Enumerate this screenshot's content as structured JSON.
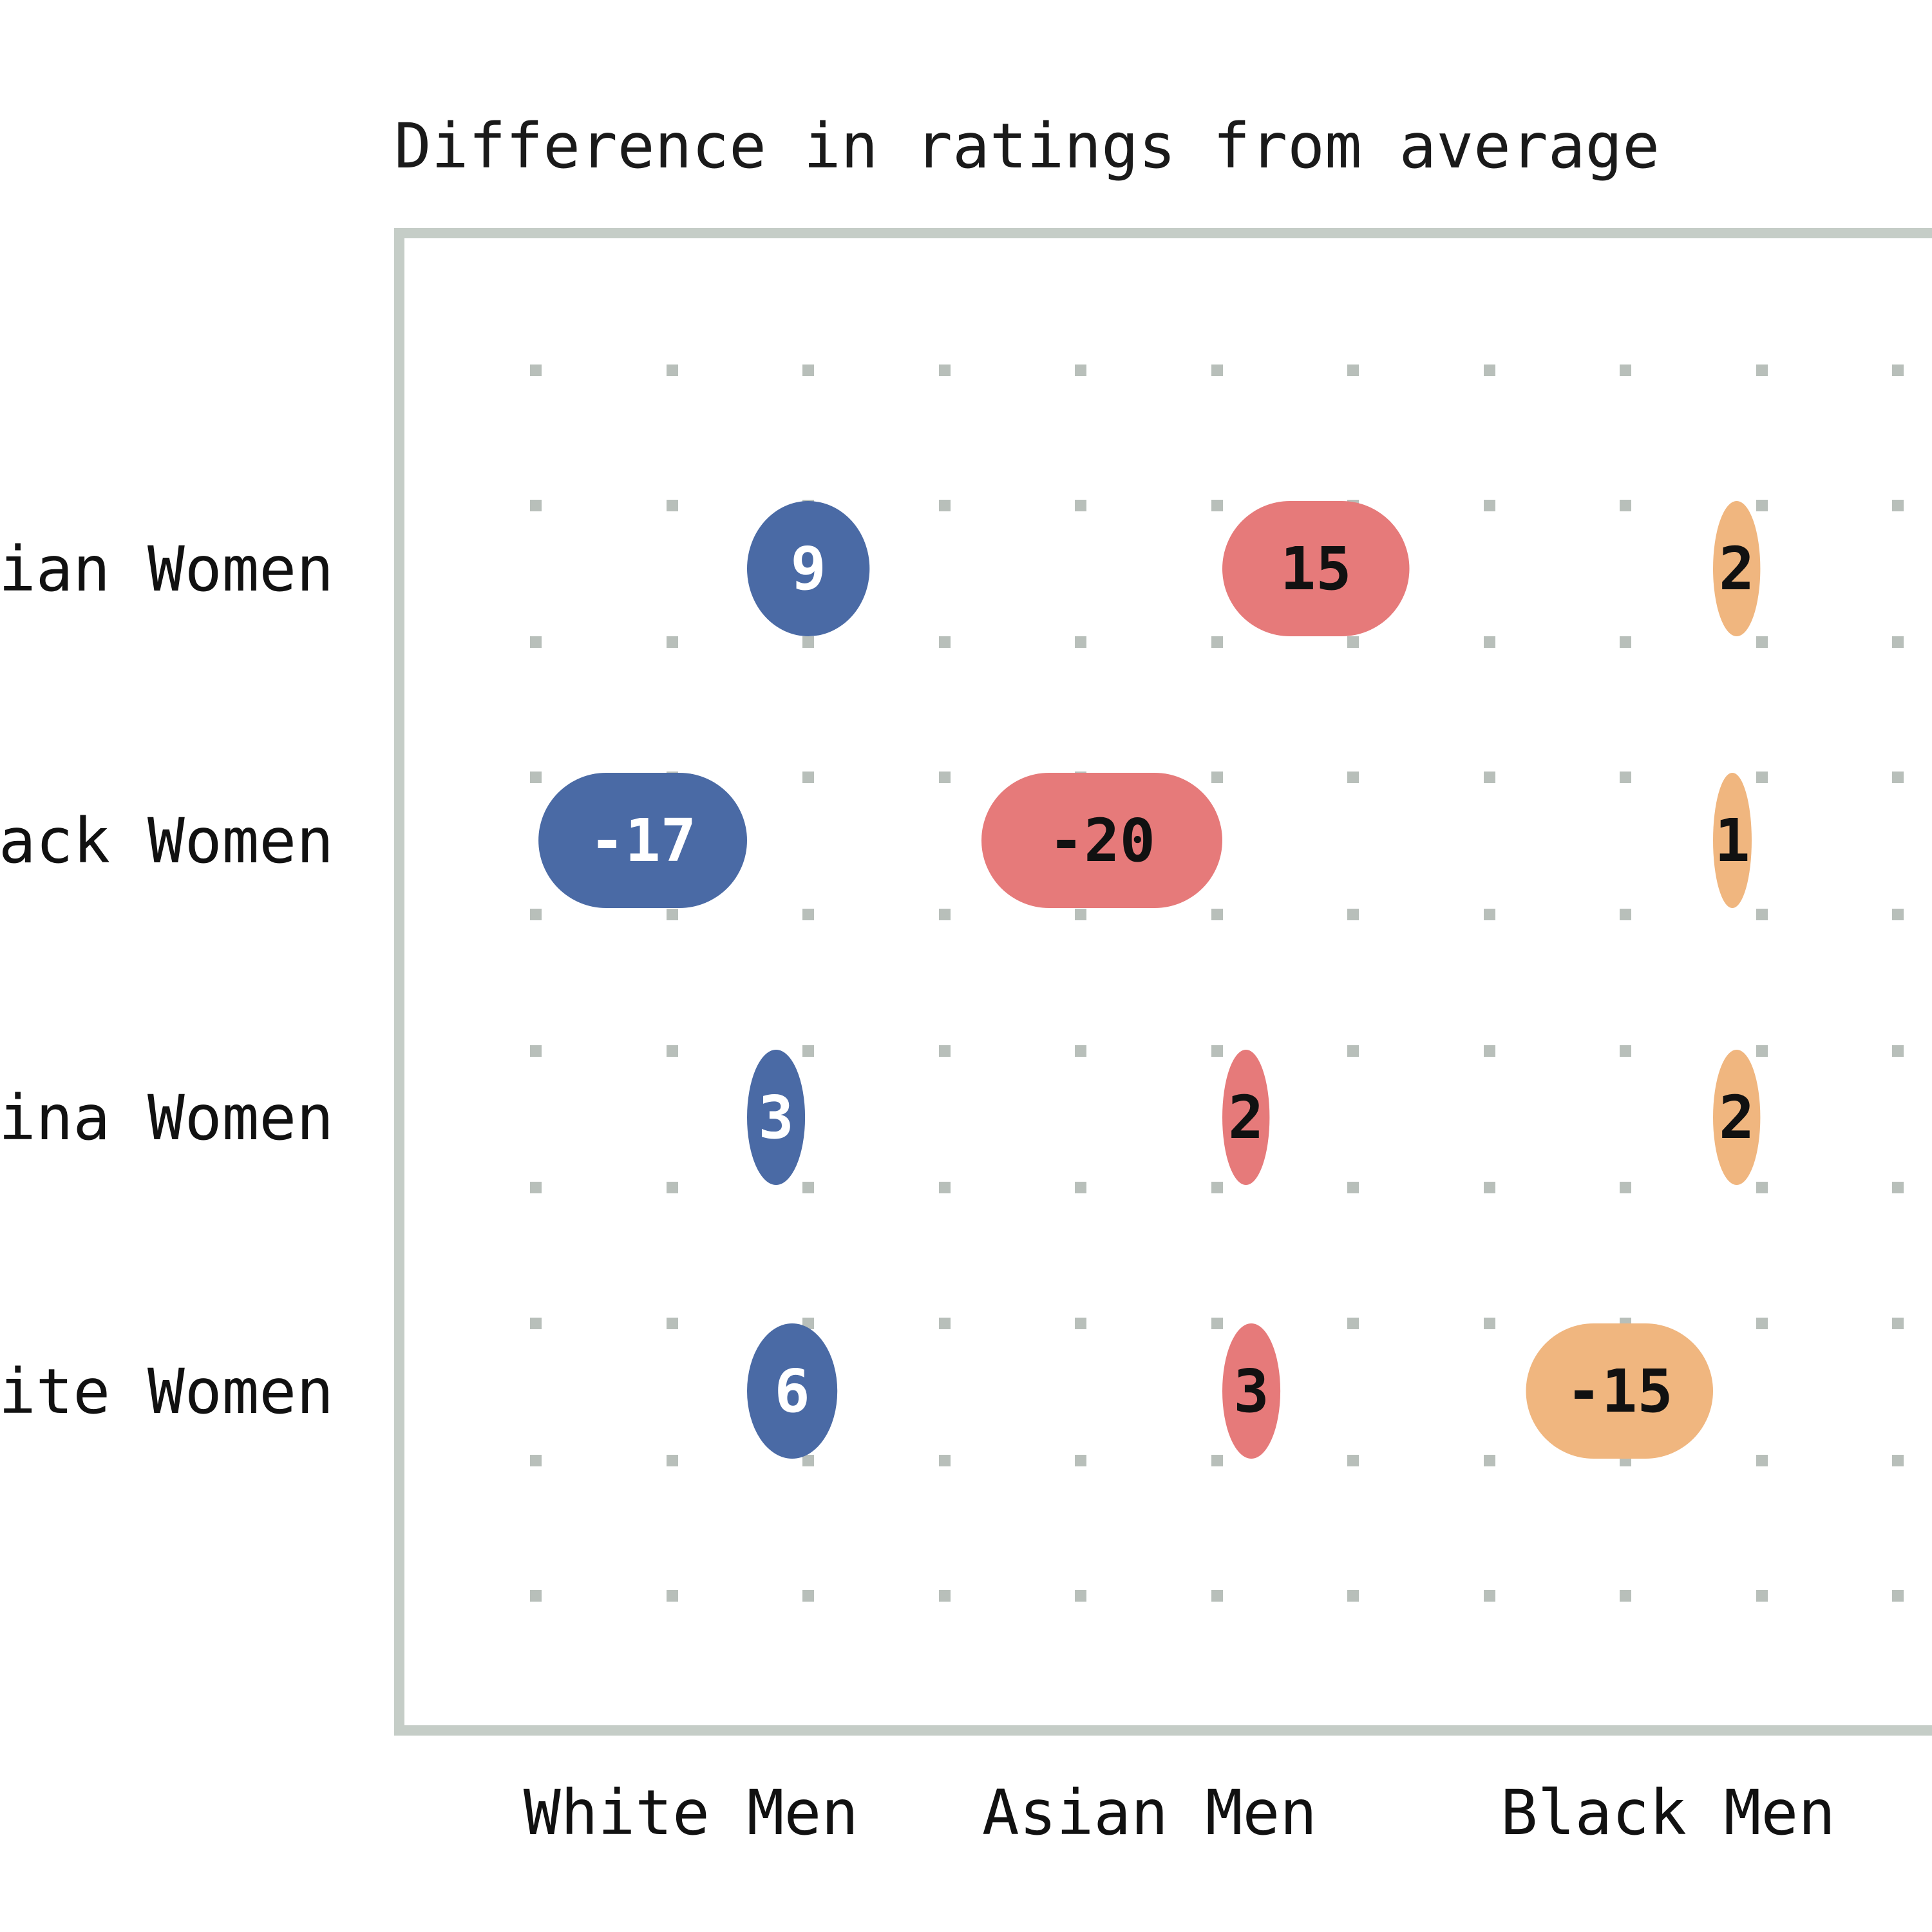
{
  "chart_data": {
    "type": "bubble-matrix",
    "title": "Difference in ratings from average",
    "columns": [
      "White Men",
      "Asian Men",
      "Black Men"
    ],
    "rows": [
      "ian Women",
      "ack Women",
      "ina Women",
      "ite Women"
    ],
    "values": [
      [
        9,
        15,
        2
      ],
      [
        -17,
        -20,
        1
      ],
      [
        3,
        2,
        2
      ],
      [
        6,
        3,
        -15
      ]
    ],
    "series_colors": [
      "#4a6aa5",
      "#e67a7a",
      "#f0b67f"
    ],
    "label_colors": [
      "#ffffff",
      "#111111",
      "#111111"
    ],
    "frame_color": "#c5cdc7",
    "dot_color": "#b8bfba",
    "grid": true
  }
}
